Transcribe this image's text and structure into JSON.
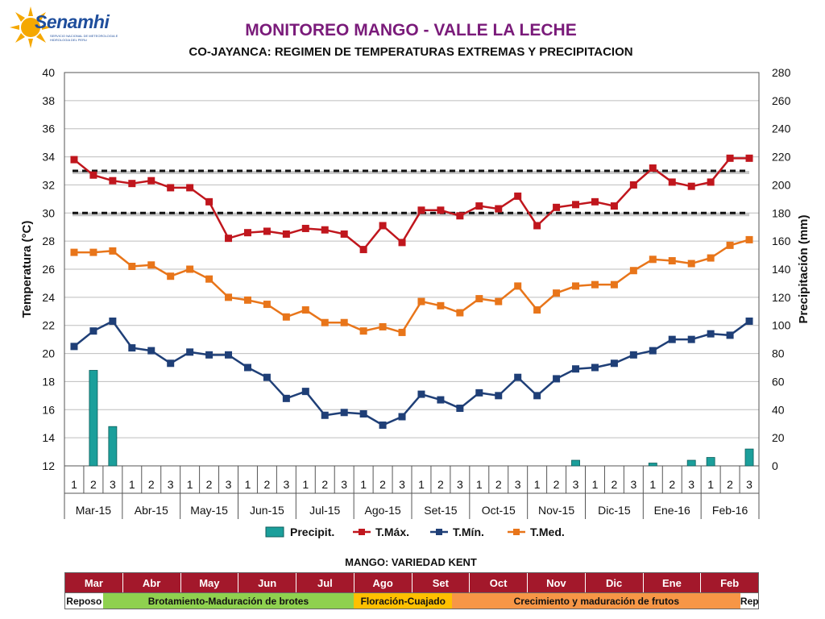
{
  "logo": {
    "name": "Senamhi",
    "subtitle": "SERVICIO NACIONAL DE METEOROLOGIA E HIDROLOGIA DEL PERU"
  },
  "header": {
    "title": "MONITOREO MANGO - VALLE LA LECHE",
    "subtitle": "CO-JAYANCA: REGIMEN DE TEMPERATURAS EXTREMAS Y PRECIPITACION"
  },
  "colors": {
    "tmax": "#c0161d",
    "tmin": "#1f3f77",
    "tmed": "#e8751a",
    "precip": "#1b9f9b",
    "threshold": "#111111",
    "month_band": "#a3182b"
  },
  "chart_data": {
    "type": "line",
    "ylabel": "Temperatura (°C)",
    "y2label": "Precipitación (mm)",
    "ylim": [
      12,
      40
    ],
    "y2lim": [
      0,
      280
    ],
    "yticks": [
      "12",
      "14",
      "16",
      "18",
      "20",
      "22",
      "24",
      "26",
      "28",
      "30",
      "32",
      "34",
      "36",
      "38",
      "40"
    ],
    "y2ticks": [
      "0",
      "20",
      "40",
      "60",
      "80",
      "100",
      "120",
      "140",
      "160",
      "180",
      "200",
      "220",
      "240",
      "260",
      "280"
    ],
    "dekads": [
      "1",
      "2",
      "3",
      "1",
      "2",
      "3",
      "1",
      "2",
      "3",
      "1",
      "2",
      "3",
      "1",
      "2",
      "3",
      "1",
      "2",
      "3",
      "1",
      "2",
      "3",
      "1",
      "2",
      "3",
      "1",
      "2",
      "3",
      "1",
      "2",
      "3",
      "1",
      "2",
      "3",
      "1",
      "2",
      "3"
    ],
    "months": [
      "Mar-15",
      "Abr-15",
      "May-15",
      "Jun-15",
      "Jul-15",
      "Ago-15",
      "Set-15",
      "Oct-15",
      "Nov-15",
      "Dic-15",
      "Ene-16",
      "Feb-16"
    ],
    "grid": true,
    "legend_position": "bottom",
    "thresholds": [
      33,
      30
    ],
    "series": [
      {
        "name": "Precipit.",
        "type": "bar",
        "axis": "right",
        "values": [
          0,
          68,
          28,
          0,
          0,
          0,
          0,
          0,
          0,
          0,
          0,
          0,
          0,
          0,
          0,
          0,
          0,
          0,
          0,
          0,
          0,
          0,
          0,
          0,
          0,
          0,
          4,
          0,
          0,
          0,
          2,
          0,
          4,
          6,
          0,
          12
        ]
      },
      {
        "name": "T.Máx.",
        "type": "line",
        "axis": "left",
        "values": [
          33.8,
          32.7,
          32.3,
          32.1,
          32.3,
          31.8,
          31.8,
          30.8,
          28.2,
          28.6,
          28.7,
          28.5,
          28.9,
          28.8,
          28.5,
          27.4,
          29.1,
          27.9,
          30.2,
          30.2,
          29.8,
          30.5,
          30.3,
          31.2,
          29.1,
          30.4,
          30.6,
          30.8,
          30.5,
          32.0,
          33.2,
          32.2,
          31.9,
          32.2,
          33.9,
          33.9
        ]
      },
      {
        "name": "T.Mín.",
        "type": "line",
        "axis": "left",
        "values": [
          20.5,
          21.6,
          22.3,
          20.4,
          20.2,
          19.3,
          20.1,
          19.9,
          19.9,
          19.0,
          18.3,
          16.8,
          17.3,
          15.6,
          15.8,
          15.7,
          14.9,
          15.5,
          17.1,
          16.7,
          16.1,
          17.2,
          17.0,
          18.3,
          17.0,
          18.2,
          18.9,
          19.0,
          19.3,
          19.9,
          20.2,
          21.0,
          21.0,
          21.4,
          21.3,
          22.3
        ]
      },
      {
        "name": "T.Med.",
        "type": "line",
        "axis": "left",
        "values": [
          27.2,
          27.2,
          27.3,
          26.2,
          26.3,
          25.5,
          26.0,
          25.3,
          24.0,
          23.8,
          23.5,
          22.6,
          23.1,
          22.2,
          22.2,
          21.6,
          21.9,
          21.5,
          23.7,
          23.4,
          22.9,
          23.9,
          23.7,
          24.8,
          23.1,
          24.3,
          24.8,
          24.9,
          24.9,
          25.9,
          26.7,
          26.6,
          26.4,
          26.8,
          27.7,
          28.1
        ]
      }
    ]
  },
  "phases": {
    "title": "MANGO: VARIEDAD KENT",
    "months": [
      "Mar",
      "Abr",
      "May",
      "Jun",
      "Jul",
      "Ago",
      "Set",
      "Oct",
      "Nov",
      "Dic",
      "Ene",
      "Feb"
    ],
    "stages": [
      {
        "label": "Reposo",
        "color": "#ffffff",
        "span": 0.65
      },
      {
        "label": "Brotamiento-Maduración de brotes",
        "color": "#8fd14f",
        "span": 4.35
      },
      {
        "label": "Floración-Cuajado",
        "color": "#ffc000",
        "span": 1.7
      },
      {
        "label": "Crecimiento y maduración de frutos",
        "color": "#f79646",
        "span": 5.0
      },
      {
        "label": "Rep",
        "color": "#ffffff",
        "span": 0.3
      }
    ]
  }
}
